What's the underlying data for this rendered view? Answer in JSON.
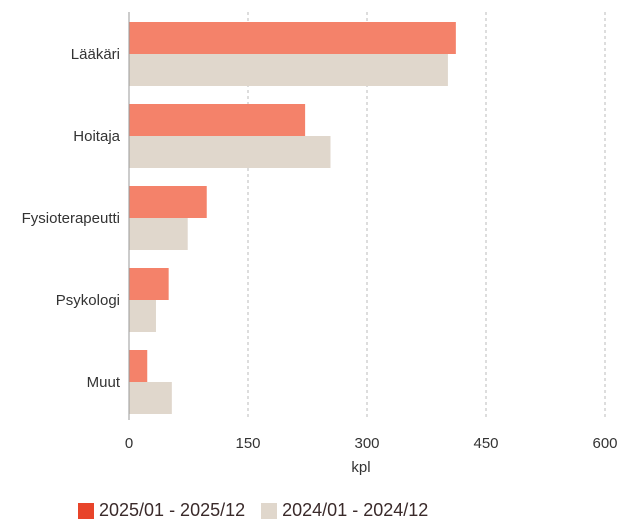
{
  "chart_data": {
    "type": "bar",
    "orientation": "horizontal",
    "categories": [
      "Lääkäri",
      "Hoitaja",
      "Fysioterapeutti",
      "Psykologi",
      "Muut"
    ],
    "series": [
      {
        "name": "2025/01 - 2025/12",
        "values": [
          412,
          222,
          98,
          50,
          23
        ],
        "color": "#f4826a"
      },
      {
        "name": "2024/01 - 2024/12",
        "values": [
          402,
          254,
          74,
          34,
          54
        ],
        "color": "#e0d7cc"
      }
    ],
    "xlabel": "kpl",
    "ylabel": "",
    "xlim": [
      0,
      600
    ],
    "xticks": [
      "0",
      "150",
      "300",
      "450",
      "600"
    ],
    "grid": true,
    "legend_position": "bottom-left",
    "legend_swatch_colors": [
      "#e8442a",
      "#e0d7cc"
    ]
  }
}
